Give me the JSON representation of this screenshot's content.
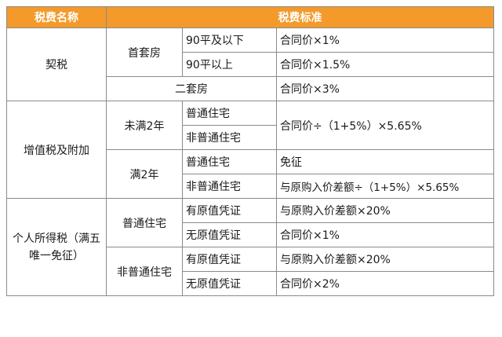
{
  "header": {
    "col_name": "税费名称",
    "col_standard": "税费标准"
  },
  "deed_tax": {
    "name": "契税",
    "first_home": "首套房",
    "under_90": "90平及以下",
    "under_90_rate": "合同价×1%",
    "over_90": "90平以上",
    "over_90_rate": "合同价×1.5%",
    "second_home": "二套房",
    "second_home_rate": "合同价×3%"
  },
  "vat": {
    "name": "增值税及附加",
    "under_2y": "未满2年",
    "under_2y_normal": "普通住宅",
    "under_2y_nonnormal": "非普通住宅",
    "under_2y_rate": "合同价÷（1+5%）×5.65%",
    "over_2y": "满2年",
    "over_2y_normal": "普通住宅",
    "over_2y_normal_rate": "免征",
    "over_2y_nonnormal": "非普通住宅",
    "over_2y_nonnormal_rate": "与原购入价差额÷（1+5%）×5.65%"
  },
  "income_tax": {
    "name": "个人所得税（满五唯一免征）",
    "normal": "普通住宅",
    "normal_with_proof": "有原值凭证",
    "normal_with_proof_rate": "与原购入价差额×20%",
    "normal_without_proof": "无原值凭证",
    "normal_without_proof_rate": "合同价×1%",
    "nonnormal": "非普通住宅",
    "nonnormal_with_proof": "有原值凭证",
    "nonnormal_with_proof_rate": "与原购入价差额×20%",
    "nonnormal_without_proof": "无原值凭证",
    "nonnormal_without_proof_rate": "合同价×2%"
  },
  "colors": {
    "header_bg": "#f39a2b",
    "header_text": "#ffffff",
    "border": "#8a8a8a"
  }
}
